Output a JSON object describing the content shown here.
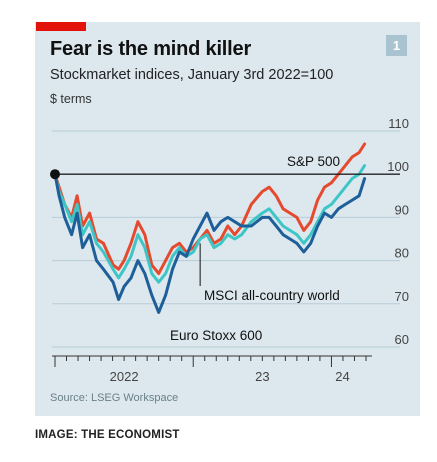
{
  "tag_color": "#e3120b",
  "badge": "1",
  "credit": "IMAGE: THE ECONOMIST",
  "chart_data": {
    "type": "line",
    "title": "Fear is the mind killer",
    "subtitle": "Stockmarket indices, January 3rd 2022=100",
    "unit_label": "$ terms",
    "source": "Source: LSEG Workspace",
    "ylim": [
      60,
      112
    ],
    "yticks": [
      60,
      70,
      80,
      90,
      100,
      110
    ],
    "x_tick_labels": [
      "2022",
      "23",
      "24"
    ],
    "reference_line": 100,
    "start_marker": [
      2022.0,
      100
    ],
    "grid": true,
    "series": [
      {
        "name": "S&P 500",
        "color": "#e64a2e",
        "points": [
          [
            2022.0,
            100
          ],
          [
            2022.03,
            97
          ],
          [
            2022.07,
            93
          ],
          [
            2022.12,
            90
          ],
          [
            2022.16,
            95
          ],
          [
            2022.2,
            88
          ],
          [
            2022.25,
            91
          ],
          [
            2022.3,
            85
          ],
          [
            2022.35,
            84
          ],
          [
            2022.42,
            79
          ],
          [
            2022.46,
            78
          ],
          [
            2022.5,
            80
          ],
          [
            2022.55,
            84
          ],
          [
            2022.6,
            89
          ],
          [
            2022.65,
            86
          ],
          [
            2022.7,
            79
          ],
          [
            2022.75,
            77
          ],
          [
            2022.8,
            80
          ],
          [
            2022.85,
            83
          ],
          [
            2022.9,
            84
          ],
          [
            2022.95,
            82
          ],
          [
            2023.0,
            83
          ],
          [
            2023.05,
            85
          ],
          [
            2023.1,
            87
          ],
          [
            2023.15,
            84
          ],
          [
            2023.2,
            85
          ],
          [
            2023.25,
            88
          ],
          [
            2023.3,
            86
          ],
          [
            2023.35,
            88
          ],
          [
            2023.42,
            93
          ],
          [
            2023.5,
            96
          ],
          [
            2023.55,
            97
          ],
          [
            2023.6,
            95
          ],
          [
            2023.65,
            92
          ],
          [
            2023.7,
            91
          ],
          [
            2023.75,
            90
          ],
          [
            2023.8,
            87
          ],
          [
            2023.85,
            89
          ],
          [
            2023.9,
            94
          ],
          [
            2023.95,
            97
          ],
          [
            2024.0,
            98
          ],
          [
            2024.05,
            100
          ],
          [
            2024.1,
            102
          ],
          [
            2024.15,
            104
          ],
          [
            2024.2,
            105
          ],
          [
            2024.24,
            107
          ]
        ]
      },
      {
        "name": "MSCI all-country world",
        "color": "#3ec6c6",
        "points": [
          [
            2022.0,
            100
          ],
          [
            2022.03,
            96
          ],
          [
            2022.07,
            93
          ],
          [
            2022.12,
            89
          ],
          [
            2022.16,
            93
          ],
          [
            2022.2,
            86
          ],
          [
            2022.25,
            89
          ],
          [
            2022.3,
            84
          ],
          [
            2022.35,
            82
          ],
          [
            2022.42,
            78
          ],
          [
            2022.46,
            76
          ],
          [
            2022.5,
            78
          ],
          [
            2022.55,
            81
          ],
          [
            2022.6,
            86
          ],
          [
            2022.65,
            83
          ],
          [
            2022.7,
            77
          ],
          [
            2022.75,
            75
          ],
          [
            2022.8,
            77
          ],
          [
            2022.85,
            81
          ],
          [
            2022.9,
            83
          ],
          [
            2022.95,
            81
          ],
          [
            2023.0,
            82
          ],
          [
            2023.05,
            85
          ],
          [
            2023.1,
            86
          ],
          [
            2023.15,
            83
          ],
          [
            2023.2,
            84
          ],
          [
            2023.25,
            86
          ],
          [
            2023.3,
            85
          ],
          [
            2023.35,
            86
          ],
          [
            2023.42,
            89
          ],
          [
            2023.5,
            91
          ],
          [
            2023.55,
            92
          ],
          [
            2023.6,
            90
          ],
          [
            2023.65,
            88
          ],
          [
            2023.7,
            87
          ],
          [
            2023.75,
            86
          ],
          [
            2023.8,
            84
          ],
          [
            2023.85,
            86
          ],
          [
            2023.9,
            89
          ],
          [
            2023.95,
            92
          ],
          [
            2024.0,
            93
          ],
          [
            2024.05,
            95
          ],
          [
            2024.1,
            97
          ],
          [
            2024.15,
            99
          ],
          [
            2024.2,
            100
          ],
          [
            2024.24,
            102
          ]
        ]
      },
      {
        "name": "Euro Stoxx 600",
        "color": "#1f5f99",
        "points": [
          [
            2022.0,
            100
          ],
          [
            2022.03,
            95
          ],
          [
            2022.07,
            90
          ],
          [
            2022.12,
            86
          ],
          [
            2022.16,
            91
          ],
          [
            2022.2,
            83
          ],
          [
            2022.25,
            86
          ],
          [
            2022.3,
            80
          ],
          [
            2022.35,
            78
          ],
          [
            2022.42,
            75
          ],
          [
            2022.46,
            71
          ],
          [
            2022.5,
            74
          ],
          [
            2022.55,
            76
          ],
          [
            2022.6,
            80
          ],
          [
            2022.65,
            77
          ],
          [
            2022.7,
            72
          ],
          [
            2022.75,
            68
          ],
          [
            2022.8,
            72
          ],
          [
            2022.85,
            78
          ],
          [
            2022.9,
            82
          ],
          [
            2022.95,
            81
          ],
          [
            2023.0,
            85
          ],
          [
            2023.05,
            88
          ],
          [
            2023.1,
            91
          ],
          [
            2023.15,
            87
          ],
          [
            2023.2,
            89
          ],
          [
            2023.25,
            90
          ],
          [
            2023.3,
            89
          ],
          [
            2023.35,
            88
          ],
          [
            2023.42,
            88
          ],
          [
            2023.5,
            90
          ],
          [
            2023.55,
            90
          ],
          [
            2023.6,
            88
          ],
          [
            2023.65,
            86
          ],
          [
            2023.7,
            85
          ],
          [
            2023.75,
            84
          ],
          [
            2023.8,
            82
          ],
          [
            2023.85,
            84
          ],
          [
            2023.9,
            88
          ],
          [
            2023.95,
            91
          ],
          [
            2024.0,
            90
          ],
          [
            2024.05,
            92
          ],
          [
            2024.1,
            93
          ],
          [
            2024.15,
            94
          ],
          [
            2024.2,
            95
          ],
          [
            2024.24,
            99
          ]
        ]
      }
    ]
  }
}
